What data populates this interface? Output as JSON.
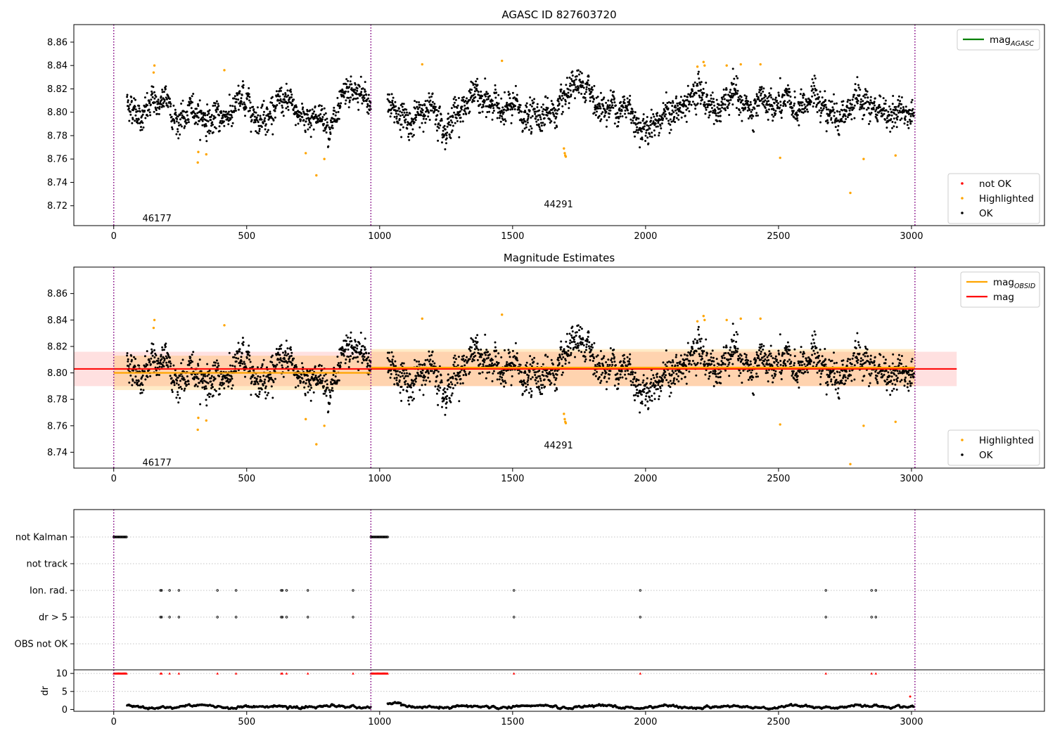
{
  "chart_data": [
    {
      "type": "scatter",
      "title": "AGASC ID 827603720",
      "xlim": [
        -150,
        3500
      ],
      "ylim": [
        8.703,
        8.875
      ],
      "xticks": [
        0,
        500,
        1000,
        1500,
        2000,
        2500,
        3000
      ],
      "yticks": [
        8.72,
        8.74,
        8.76,
        8.78,
        8.8,
        8.82,
        8.84,
        8.86
      ],
      "obsid_boundaries": [
        0,
        967,
        3013
      ],
      "obsid_labels": [
        {
          "text": "46177",
          "x": 480,
          "y": 8.709
        },
        {
          "text": "44291",
          "x": 1990,
          "y": 8.721
        }
      ],
      "legend_top": {
        "location": "upper right",
        "entries": [
          {
            "label": "mag",
            "sub": "AGASC",
            "color": "#008000"
          }
        ]
      },
      "legend_bottom": {
        "location": "lower right",
        "entries": [
          {
            "label": "not OK",
            "color": "#ff0000"
          },
          {
            "label": "Highlighted",
            "color": "#ffa500"
          },
          {
            "label": "OK",
            "color": "#000000"
          }
        ]
      },
      "segments": [
        {
          "x_range": [
            50,
            967
          ],
          "mean": 8.801,
          "spread": 0.0075
        },
        {
          "x_range": [
            1030,
            3010
          ],
          "mean": 8.803,
          "spread": 0.008
        }
      ],
      "highlighted_points": [
        [
          153,
          8.84
        ],
        [
          150,
          8.834
        ],
        [
          318,
          8.766
        ],
        [
          316,
          8.757
        ],
        [
          348,
          8.764
        ],
        [
          416,
          8.836
        ],
        [
          722,
          8.765
        ],
        [
          762,
          8.746
        ],
        [
          792,
          8.76
        ],
        [
          1160,
          8.841
        ],
        [
          1460,
          8.844
        ],
        [
          1693,
          8.769
        ],
        [
          1696,
          8.765
        ],
        [
          1698,
          8.763
        ],
        [
          1700,
          8.762
        ],
        [
          2195,
          8.839
        ],
        [
          2218,
          8.843
        ],
        [
          2222,
          8.84
        ],
        [
          2305,
          8.84
        ],
        [
          2358,
          8.841
        ],
        [
          2432,
          8.841
        ],
        [
          2506,
          8.761
        ],
        [
          2770,
          8.731
        ],
        [
          2820,
          8.76
        ],
        [
          2940,
          8.763
        ]
      ]
    },
    {
      "type": "scatter",
      "title": "Magnitude Estimates",
      "xlim": [
        -150,
        3500
      ],
      "ylim": [
        8.728,
        8.88
      ],
      "xticks": [
        0,
        500,
        1000,
        1500,
        2000,
        2500,
        3000
      ],
      "yticks": [
        8.74,
        8.76,
        8.78,
        8.8,
        8.82,
        8.84,
        8.86
      ],
      "obsid_labels": [
        {
          "text": "46177",
          "x": 480,
          "y": 8.732
        },
        {
          "text": "44291",
          "x": 1990,
          "y": 8.745
        }
      ],
      "legend_top": {
        "location": "upper right",
        "entries": [
          {
            "label": "mag",
            "sub": "OBSID",
            "color": "#ffa500"
          },
          {
            "label": "mag",
            "sub": "",
            "color": "#ff0000"
          }
        ]
      },
      "legend_bottom": {
        "location": "lower right",
        "entries": [
          {
            "label": "Highlighted",
            "color": "#ffa500"
          },
          {
            "label": "OK",
            "color": "#000000"
          }
        ]
      },
      "mag": {
        "value": 8.803,
        "band": [
          8.79,
          8.816
        ],
        "x_range": [
          -150,
          3170
        ],
        "color": "#ff0000"
      },
      "mag_obsid": [
        {
          "x_range": [
            0,
            967
          ],
          "value": 8.8,
          "band": [
            8.787,
            8.813
          ]
        },
        {
          "x_range": [
            967,
            3013
          ],
          "value": 8.804,
          "band": [
            8.79,
            8.818
          ]
        }
      ]
    },
    {
      "type": "scatter",
      "xlim": [
        -150,
        3500
      ],
      "flag_rows": [
        "not Kalman",
        "not track",
        "Ion. rad.",
        "dr > 5",
        "OBS not OK"
      ],
      "flag_points": {
        "not Kalman": [
          [
            0,
            50
          ],
          [
            967,
            1030
          ]
        ],
        "Ion. rad.": [
          176,
          180,
          210,
          245,
          390,
          460,
          630,
          634,
          650,
          730,
          900,
          1505,
          1980,
          2678,
          2850,
          2866
        ],
        "dr > 5": [
          176,
          180,
          210,
          245,
          390,
          460,
          630,
          634,
          650,
          730,
          900,
          1505,
          1980,
          2678,
          2850,
          2866
        ]
      },
      "dr": {
        "ylabel": "dr",
        "yticks": [
          0,
          5,
          10
        ],
        "ylim": [
          -0.5,
          11
        ],
        "clipped_red_x": [
          176,
          180,
          210,
          245,
          390,
          460,
          630,
          634,
          650,
          730,
          900,
          1505,
          1980,
          2678,
          2850,
          2866
        ],
        "outlier": [
          2995,
          3.6
        ]
      }
    }
  ]
}
